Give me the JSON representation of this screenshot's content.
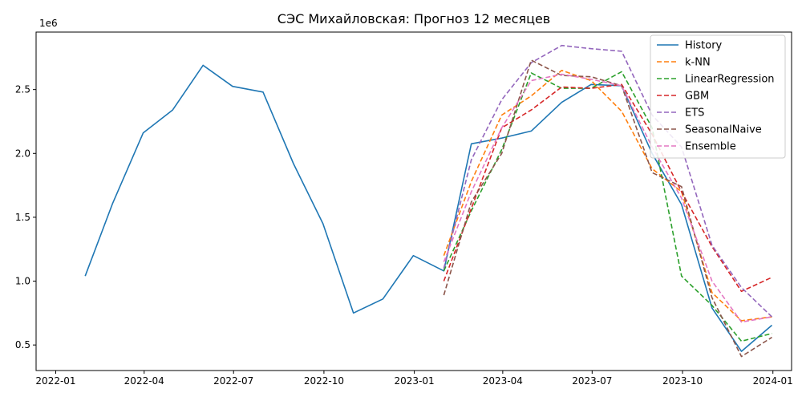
{
  "chart_data": {
    "type": "line",
    "title": "СЭС Михайловская: Прогноз 12 месяцев",
    "xlabel": "",
    "ylabel": "",
    "y_multiplier_label": "1e6",
    "xlim": [
      "2021-12-12",
      "2024-01-20"
    ],
    "ylim": [
      0.3,
      2.95
    ],
    "x_ticks": [
      {
        "date": "2022-01-01",
        "label": "2022-01"
      },
      {
        "date": "2022-04-01",
        "label": "2022-04"
      },
      {
        "date": "2022-07-01",
        "label": "2022-07"
      },
      {
        "date": "2022-10-01",
        "label": "2022-10"
      },
      {
        "date": "2023-01-01",
        "label": "2023-01"
      },
      {
        "date": "2023-04-01",
        "label": "2023-04"
      },
      {
        "date": "2023-07-01",
        "label": "2023-07"
      },
      {
        "date": "2023-10-01",
        "label": "2023-10"
      },
      {
        "date": "2024-01-01",
        "label": "2024-01"
      }
    ],
    "y_ticks": [
      {
        "value": 0.5,
        "label": "0.5"
      },
      {
        "value": 1.0,
        "label": "1.0"
      },
      {
        "value": 1.5,
        "label": "1.5"
      },
      {
        "value": 2.0,
        "label": "2.0"
      },
      {
        "value": 2.5,
        "label": "2.5"
      }
    ],
    "grid": false,
    "legend_position": "top-right",
    "series": [
      {
        "name": "History",
        "color": "#1f77b4",
        "dashed": false,
        "x": [
          "2022-01-31",
          "2022-02-28",
          "2022-03-31",
          "2022-04-30",
          "2022-05-31",
          "2022-06-30",
          "2022-07-31",
          "2022-08-31",
          "2022-09-30",
          "2022-10-31",
          "2022-11-30",
          "2022-12-31",
          "2023-01-31",
          "2023-02-28",
          "2023-03-31",
          "2023-04-30",
          "2023-05-31",
          "2023-06-30",
          "2023-07-31",
          "2023-08-31",
          "2023-09-30",
          "2023-10-31",
          "2023-11-30",
          "2023-12-31"
        ],
        "y": [
          1.04,
          1.61,
          2.16,
          2.34,
          2.69,
          2.525,
          2.48,
          1.92,
          1.45,
          0.75,
          0.86,
          1.2,
          1.08,
          2.075,
          2.12,
          2.175,
          2.4,
          2.54,
          2.53,
          2.0,
          1.6,
          0.79,
          0.45,
          0.655
        ]
      },
      {
        "name": "k-NN",
        "color": "#ff7f0e",
        "dashed": true,
        "x": [
          "2023-01-31",
          "2023-02-28",
          "2023-03-31",
          "2023-04-30",
          "2023-05-31",
          "2023-06-30",
          "2023-07-31",
          "2023-08-31",
          "2023-09-30",
          "2023-10-31",
          "2023-11-30",
          "2023-12-31"
        ],
        "y": [
          1.2,
          1.78,
          2.3,
          2.45,
          2.65,
          2.57,
          2.33,
          1.88,
          1.7,
          0.91,
          0.69,
          0.72
        ]
      },
      {
        "name": "LinearRegression",
        "color": "#2ca02c",
        "dashed": true,
        "x": [
          "2023-01-31",
          "2023-02-28",
          "2023-03-31",
          "2023-04-30",
          "2023-05-31",
          "2023-06-30",
          "2023-07-31",
          "2023-08-31",
          "2023-09-30",
          "2023-10-31",
          "2023-11-30",
          "2023-12-31"
        ],
        "y": [
          1.08,
          1.55,
          2.03,
          2.63,
          2.51,
          2.51,
          2.64,
          2.2,
          1.04,
          0.81,
          0.53,
          0.59
        ]
      },
      {
        "name": "GBM",
        "color": "#d62728",
        "dashed": true,
        "x": [
          "2023-01-31",
          "2023-02-28",
          "2023-03-31",
          "2023-04-30",
          "2023-05-31",
          "2023-06-30",
          "2023-07-31",
          "2023-08-31",
          "2023-09-30",
          "2023-10-31",
          "2023-11-30",
          "2023-12-31"
        ],
        "y": [
          1.0,
          1.57,
          2.2,
          2.34,
          2.52,
          2.51,
          2.54,
          2.15,
          1.7,
          1.27,
          0.92,
          1.03
        ]
      },
      {
        "name": "ETS",
        "color": "#9467bd",
        "dashed": true,
        "x": [
          "2023-01-31",
          "2023-02-28",
          "2023-03-31",
          "2023-04-30",
          "2023-05-31",
          "2023-06-30",
          "2023-07-31",
          "2023-08-31",
          "2023-09-30",
          "2023-10-31",
          "2023-11-30",
          "2023-12-31"
        ],
        "y": [
          1.1,
          1.95,
          2.42,
          2.71,
          2.845,
          2.82,
          2.8,
          2.3,
          2.05,
          1.28,
          0.95,
          0.72
        ]
      },
      {
        "name": "SeasonalNaive",
        "color": "#8c564b",
        "dashed": true,
        "x": [
          "2023-01-31",
          "2023-02-28",
          "2023-03-31",
          "2023-04-30",
          "2023-05-31",
          "2023-06-30",
          "2023-07-31",
          "2023-08-31",
          "2023-09-30",
          "2023-10-31",
          "2023-11-30",
          "2023-12-31"
        ],
        "y": [
          0.89,
          1.62,
          2.0,
          2.73,
          2.61,
          2.6,
          2.53,
          1.85,
          1.74,
          0.87,
          0.41,
          0.56
        ]
      },
      {
        "name": "Ensemble",
        "color": "#e377c2",
        "dashed": true,
        "x": [
          "2023-01-31",
          "2023-02-28",
          "2023-03-31",
          "2023-04-30",
          "2023-05-31",
          "2023-06-30",
          "2023-07-31",
          "2023-08-31",
          "2023-09-30",
          "2023-10-31",
          "2023-11-30",
          "2023-12-31"
        ],
        "y": [
          1.15,
          1.7,
          2.2,
          2.57,
          2.62,
          2.58,
          2.53,
          2.05,
          1.65,
          1.0,
          0.68,
          0.72
        ]
      }
    ]
  }
}
